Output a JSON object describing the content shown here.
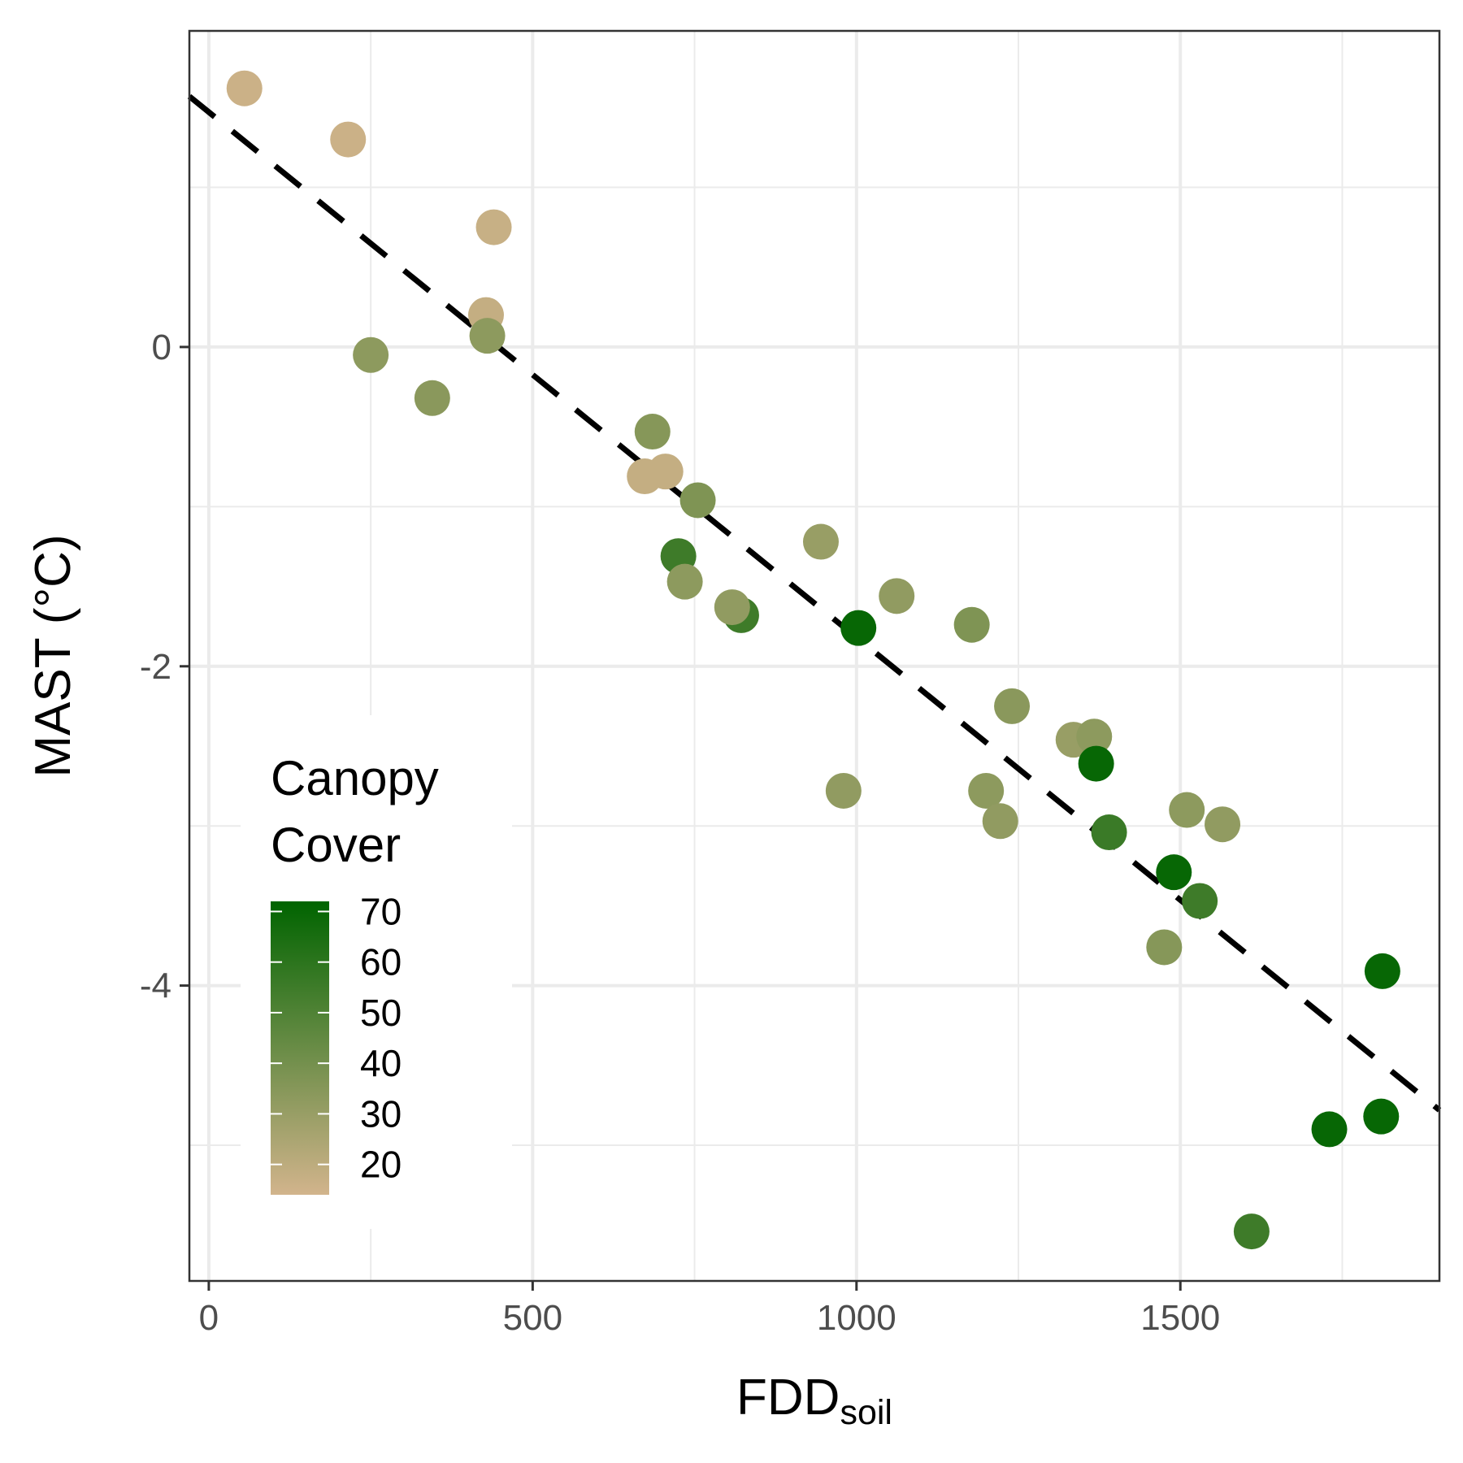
{
  "chart_data": {
    "type": "scatter",
    "title": "",
    "xlabel": "FDD",
    "xlabel_subscript": "soil",
    "ylabel": "MAST (°C)",
    "xlim": [
      -30,
      1900
    ],
    "ylim": [
      -5.85,
      1.98
    ],
    "x_ticks": [
      0,
      500,
      1000,
      1500
    ],
    "y_ticks": [
      0,
      -2,
      -4
    ],
    "x_tick_labels": [
      "0",
      "500",
      "1000",
      "1500"
    ],
    "y_tick_labels": [
      "0",
      "-2",
      "-4"
    ],
    "grid": true,
    "trend_line": {
      "style": "dashed",
      "color": "#000000",
      "points": [
        [
          -30,
          1.57
        ],
        [
          1900,
          -4.78
        ]
      ]
    },
    "color_scale": {
      "title_lines": [
        "Canopy",
        "Cover"
      ],
      "min": 14,
      "max": 72,
      "low_color": "#d2b48c",
      "high_color": "#006400",
      "ticks": [
        70,
        60,
        50,
        40,
        30,
        20
      ],
      "tick_labels": [
        "70",
        "60",
        "50",
        "40",
        "30",
        "20"
      ]
    },
    "legend_position": "bottom-left inside",
    "points": [
      {
        "x": 55,
        "y": 1.62,
        "canopy": 16
      },
      {
        "x": 215,
        "y": 1.3,
        "canopy": 16
      },
      {
        "x": 440,
        "y": 0.75,
        "canopy": 17
      },
      {
        "x": 428,
        "y": 0.2,
        "canopy": 18
      },
      {
        "x": 430,
        "y": 0.07,
        "canopy": 33
      },
      {
        "x": 250,
        "y": -0.05,
        "canopy": 33
      },
      {
        "x": 345,
        "y": -0.32,
        "canopy": 34
      },
      {
        "x": 685,
        "y": -0.53,
        "canopy": 35
      },
      {
        "x": 705,
        "y": -0.78,
        "canopy": 18
      },
      {
        "x": 673,
        "y": -0.81,
        "canopy": 18
      },
      {
        "x": 755,
        "y": -0.96,
        "canopy": 37
      },
      {
        "x": 725,
        "y": -1.31,
        "canopy": 55
      },
      {
        "x": 735,
        "y": -1.47,
        "canopy": 33
      },
      {
        "x": 822,
        "y": -1.68,
        "canopy": 55
      },
      {
        "x": 808,
        "y": -1.63,
        "canopy": 32
      },
      {
        "x": 945,
        "y": -1.22,
        "canopy": 30
      },
      {
        "x": 1003,
        "y": -1.76,
        "canopy": 70
      },
      {
        "x": 1062,
        "y": -1.56,
        "canopy": 32
      },
      {
        "x": 1178,
        "y": -1.74,
        "canopy": 37
      },
      {
        "x": 980,
        "y": -2.78,
        "canopy": 32
      },
      {
        "x": 1240,
        "y": -2.25,
        "canopy": 34
      },
      {
        "x": 1335,
        "y": -2.46,
        "canopy": 30
      },
      {
        "x": 1367,
        "y": -2.44,
        "canopy": 33
      },
      {
        "x": 1370,
        "y": -2.61,
        "canopy": 70
      },
      {
        "x": 1200,
        "y": -2.78,
        "canopy": 33
      },
      {
        "x": 1222,
        "y": -2.97,
        "canopy": 32
      },
      {
        "x": 1390,
        "y": -3.04,
        "canopy": 56
      },
      {
        "x": 1510,
        "y": -2.9,
        "canopy": 33
      },
      {
        "x": 1565,
        "y": -2.99,
        "canopy": 32
      },
      {
        "x": 1490,
        "y": -3.29,
        "canopy": 70
      },
      {
        "x": 1530,
        "y": -3.47,
        "canopy": 55
      },
      {
        "x": 1475,
        "y": -3.76,
        "canopy": 35
      },
      {
        "x": 1610,
        "y": -5.54,
        "canopy": 55
      },
      {
        "x": 1730,
        "y": -4.9,
        "canopy": 70
      },
      {
        "x": 1812,
        "y": -3.91,
        "canopy": 70
      },
      {
        "x": 1810,
        "y": -4.82,
        "canopy": 70
      }
    ]
  }
}
